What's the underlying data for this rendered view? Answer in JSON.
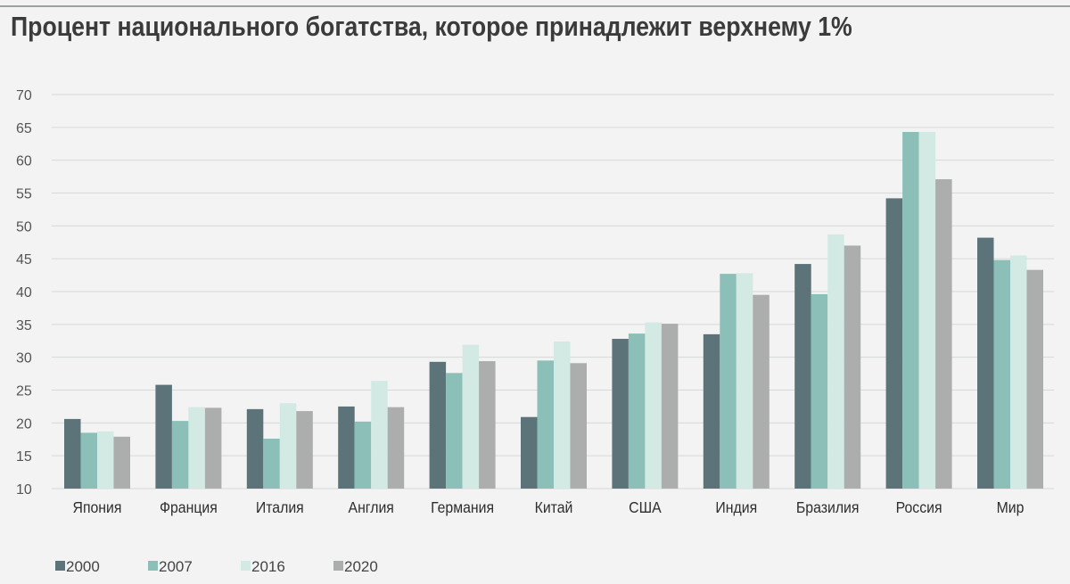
{
  "chart_data": {
    "type": "bar",
    "title": "Процент национального богатства, которое принадлежит верхнему 1%",
    "xlabel": "",
    "ylabel": "",
    "ylim": [
      10,
      70
    ],
    "yticks": [
      10,
      15,
      20,
      25,
      30,
      35,
      40,
      45,
      50,
      55,
      60,
      65,
      70
    ],
    "grid": true,
    "legend_position": "bottom-left",
    "categories": [
      "Япония",
      "Франция",
      "Италия",
      "Англия",
      "Германия",
      "Китай",
      "США",
      "Индия",
      "Бразилия",
      "Россия",
      "Мир"
    ],
    "series": [
      {
        "name": "2000",
        "color": "#5c7479",
        "values": [
          20.6,
          25.8,
          22.1,
          22.5,
          29.3,
          20.9,
          32.8,
          33.5,
          44.2,
          54.2,
          48.2
        ]
      },
      {
        "name": "2007",
        "color": "#8cbfb8",
        "values": [
          18.5,
          20.3,
          17.6,
          20.2,
          27.6,
          29.5,
          33.6,
          42.7,
          39.6,
          64.3,
          44.8
        ]
      },
      {
        "name": "2016",
        "color": "#d3e9e4",
        "values": [
          18.7,
          22.4,
          23.0,
          26.4,
          31.9,
          32.4,
          35.3,
          42.8,
          48.7,
          64.3,
          45.5
        ]
      },
      {
        "name": "2020",
        "color": "#acadad",
        "values": [
          17.9,
          22.3,
          21.8,
          22.4,
          29.4,
          29.1,
          35.1,
          39.5,
          47.0,
          57.1,
          43.3
        ]
      }
    ]
  }
}
